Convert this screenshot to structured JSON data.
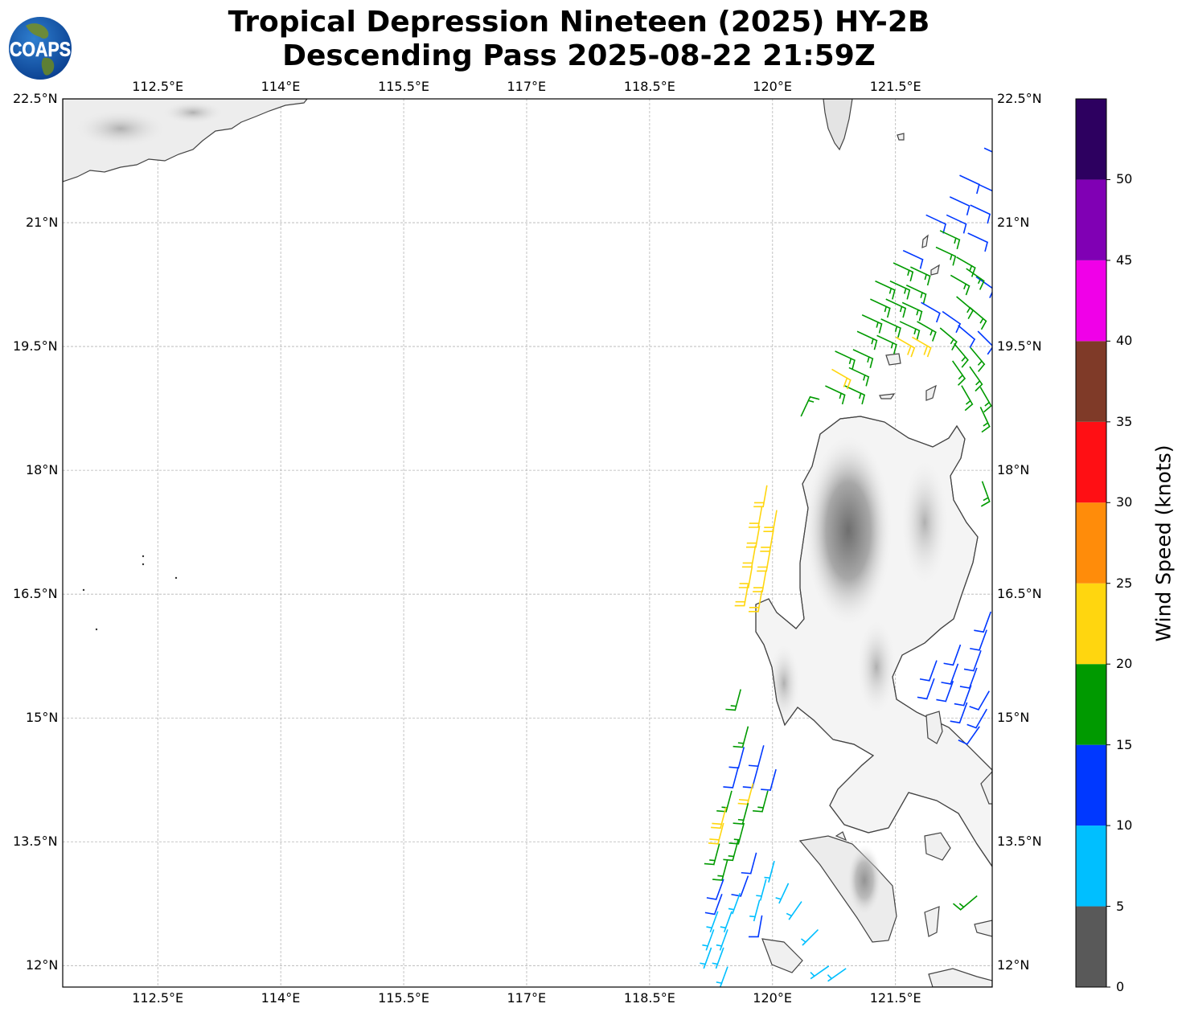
{
  "title": {
    "line1": "Tropical Depression Nineteen (2025) HY-2B",
    "line2": "Descending Pass 2025-08-22 21:59Z"
  },
  "logo": {
    "text": "COAPS",
    "icon": "globe-logo"
  },
  "map": {
    "lon_range": [
      111.34,
      122.68
    ],
    "lat_range": [
      11.74,
      22.5
    ],
    "lon_ticks": [
      {
        "value": 112.5,
        "label": "112.5°E"
      },
      {
        "value": 114,
        "label": "114°E"
      },
      {
        "value": 115.5,
        "label": "115.5°E"
      },
      {
        "value": 117,
        "label": "117°E"
      },
      {
        "value": 118.5,
        "label": "118.5°E"
      },
      {
        "value": 120,
        "label": "120°E"
      },
      {
        "value": 121.5,
        "label": "121.5°E"
      }
    ],
    "lat_ticks": [
      {
        "value": 22.5,
        "label": "22.5°N"
      },
      {
        "value": 21,
        "label": "21°N"
      },
      {
        "value": 19.5,
        "label": "19.5°N"
      },
      {
        "value": 18,
        "label": "18°N"
      },
      {
        "value": 16.5,
        "label": "16.5°N"
      },
      {
        "value": 15,
        "label": "15°N"
      },
      {
        "value": 13.5,
        "label": "13.5°N"
      },
      {
        "value": 12,
        "label": "12°N"
      }
    ],
    "barbs_format": [
      "lat",
      "lon",
      "speed_kt",
      "dir_from_deg"
    ],
    "barbs": [
      [
        21.9,
        122.59,
        12,
        115
      ],
      [
        21.57,
        122.29,
        12,
        115
      ],
      [
        21.46,
        122.52,
        12,
        115
      ],
      [
        21.31,
        122.17,
        12,
        115
      ],
      [
        21.21,
        122.42,
        12,
        115
      ],
      [
        21.09,
        121.88,
        12,
        115
      ],
      [
        21.09,
        122.13,
        12,
        115
      ],
      [
        20.87,
        122.39,
        12,
        115
      ],
      [
        20.66,
        121.6,
        12,
        115
      ],
      [
        20.34,
        122.49,
        12,
        125
      ],
      [
        20.9,
        122.05,
        17,
        115
      ],
      [
        20.7,
        122.0,
        17,
        115
      ],
      [
        20.58,
        122.25,
        17,
        120
      ],
      [
        20.36,
        122.18,
        17,
        120
      ],
      [
        20.44,
        122.37,
        17,
        125
      ],
      [
        20.51,
        121.48,
        17,
        115
      ],
      [
        20.46,
        121.69,
        17,
        115
      ],
      [
        20.29,
        121.26,
        17,
        115
      ],
      [
        20.29,
        121.44,
        17,
        115
      ],
      [
        20.24,
        121.64,
        17,
        115
      ],
      [
        20.07,
        121.2,
        17,
        115
      ],
      [
        20.07,
        121.39,
        17,
        115
      ],
      [
        20.03,
        121.59,
        17,
        115
      ],
      [
        19.88,
        121.1,
        17,
        115
      ],
      [
        19.83,
        121.33,
        17,
        115
      ],
      [
        19.8,
        121.56,
        17,
        115
      ],
      [
        19.8,
        121.77,
        17,
        120
      ],
      [
        19.68,
        121.04,
        17,
        115
      ],
      [
        19.63,
        121.28,
        17,
        115
      ],
      [
        19.44,
        120.77,
        17,
        115
      ],
      [
        19.46,
        120.99,
        17,
        115
      ],
      [
        19.24,
        120.94,
        17,
        115
      ],
      [
        19.02,
        120.65,
        17,
        115
      ],
      [
        19.02,
        120.89,
        17,
        115
      ],
      [
        19.72,
        122.05,
        17,
        130
      ],
      [
        20.1,
        122.25,
        17,
        130
      ],
      [
        19.97,
        122.41,
        17,
        130
      ],
      [
        19.53,
        122.22,
        17,
        140
      ],
      [
        19.48,
        122.42,
        17,
        140
      ],
      [
        19.32,
        122.2,
        17,
        145
      ],
      [
        19.25,
        122.41,
        17,
        145
      ],
      [
        19.02,
        122.31,
        17,
        150
      ],
      [
        19.0,
        122.54,
        17,
        150
      ],
      [
        18.76,
        122.54,
        17,
        155
      ],
      [
        19.61,
        121.51,
        22,
        120
      ],
      [
        19.61,
        121.71,
        22,
        120
      ],
      [
        19.22,
        120.73,
        22,
        120
      ],
      [
        20.03,
        121.82,
        12,
        120
      ],
      [
        19.92,
        122.08,
        12,
        125
      ],
      [
        19.75,
        122.27,
        12,
        130
      ],
      [
        19.68,
        122.51,
        12,
        135
      ],
      [
        18.66,
        120.35,
        15,
        25
      ],
      [
        17.86,
        122.56,
        17,
        160
      ],
      [
        17.81,
        119.93,
        22,
        190
      ],
      [
        17.56,
        119.87,
        22,
        190
      ],
      [
        17.32,
        119.84,
        22,
        190
      ],
      [
        17.08,
        119.79,
        22,
        190
      ],
      [
        16.83,
        119.75,
        22,
        190
      ],
      [
        16.61,
        119.7,
        22,
        190
      ],
      [
        17.51,
        120.05,
        22,
        190
      ],
      [
        17.27,
        120.01,
        22,
        190
      ],
      [
        17.03,
        119.97,
        22,
        190
      ],
      [
        16.78,
        119.92,
        22,
        190
      ],
      [
        16.54,
        119.87,
        22,
        190
      ],
      [
        15.34,
        119.61,
        17,
        195
      ],
      [
        14.89,
        119.7,
        17,
        195
      ],
      [
        14.64,
        119.65,
        12,
        195
      ],
      [
        14.4,
        119.58,
        12,
        195
      ],
      [
        14.11,
        119.5,
        17,
        195
      ],
      [
        13.91,
        119.43,
        22,
        195
      ],
      [
        13.72,
        119.4,
        22,
        195
      ],
      [
        13.47,
        119.35,
        17,
        195
      ],
      [
        13.28,
        119.45,
        17,
        195
      ],
      [
        14.66,
        119.89,
        12,
        195
      ],
      [
        14.4,
        119.82,
        12,
        195
      ],
      [
        14.2,
        119.76,
        22,
        195
      ],
      [
        13.96,
        119.7,
        17,
        195
      ],
      [
        13.72,
        119.65,
        17,
        195
      ],
      [
        13.52,
        119.58,
        17,
        195
      ],
      [
        14.37,
        120.04,
        12,
        195
      ],
      [
        14.11,
        119.94,
        17,
        195
      ],
      [
        13.36,
        119.8,
        12,
        195
      ],
      [
        13.08,
        119.7,
        12,
        200
      ],
      [
        12.87,
        119.6,
        8,
        200
      ],
      [
        12.65,
        119.5,
        8,
        200
      ],
      [
        12.43,
        119.45,
        8,
        200
      ],
      [
        12.21,
        119.4,
        8,
        200
      ],
      [
        13.26,
        120.02,
        8,
        195
      ],
      [
        13.04,
        119.92,
        8,
        195
      ],
      [
        12.79,
        119.84,
        8,
        195
      ],
      [
        12.6,
        119.87,
        11,
        190
      ],
      [
        12.99,
        120.19,
        8,
        205
      ],
      [
        12.77,
        120.35,
        8,
        215
      ],
      [
        12.43,
        120.55,
        8,
        225
      ],
      [
        13.04,
        119.4,
        12,
        200
      ],
      [
        12.86,
        119.38,
        12,
        200
      ],
      [
        12.65,
        119.33,
        8,
        200
      ],
      [
        12.43,
        119.28,
        8,
        200
      ],
      [
        12.21,
        119.25,
        8,
        200
      ],
      [
        11.98,
        119.45,
        8,
        200
      ],
      [
        11.99,
        120.68,
        8,
        235
      ],
      [
        11.96,
        120.89,
        8,
        235
      ],
      [
        12.84,
        122.49,
        15,
        230
      ],
      [
        16.28,
        122.66,
        12,
        200
      ],
      [
        16.06,
        122.61,
        12,
        200
      ],
      [
        15.81,
        122.54,
        12,
        200
      ],
      [
        15.6,
        122.49,
        12,
        200
      ],
      [
        15.39,
        122.42,
        12,
        200
      ],
      [
        15.18,
        122.37,
        12,
        200
      ],
      [
        15.88,
        122.29,
        12,
        200
      ],
      [
        15.65,
        122.26,
        12,
        200
      ],
      [
        15.44,
        122.2,
        12,
        200
      ],
      [
        15.69,
        122.0,
        12,
        200
      ],
      [
        15.47,
        121.97,
        12,
        200
      ],
      [
        15.32,
        122.64,
        12,
        210
      ],
      [
        15.1,
        122.61,
        12,
        210
      ],
      [
        14.89,
        122.52,
        12,
        215
      ]
    ]
  },
  "colorbar": {
    "title": "Wind Speed (knots)",
    "bounds": [
      0,
      5,
      10,
      15,
      20,
      25,
      30,
      35,
      40,
      45,
      50,
      55
    ],
    "tick_labels": [
      "0",
      "5",
      "10",
      "15",
      "20",
      "25",
      "30",
      "35",
      "40",
      "45",
      "50"
    ],
    "colors": [
      "#595959",
      "#00bfff",
      "#0038ff",
      "#009a00",
      "#ffd60f",
      "#ff8c0a",
      "#ff0f14",
      "#7f3a28",
      "#f000e8",
      "#8000b4",
      "#2d0060"
    ]
  }
}
